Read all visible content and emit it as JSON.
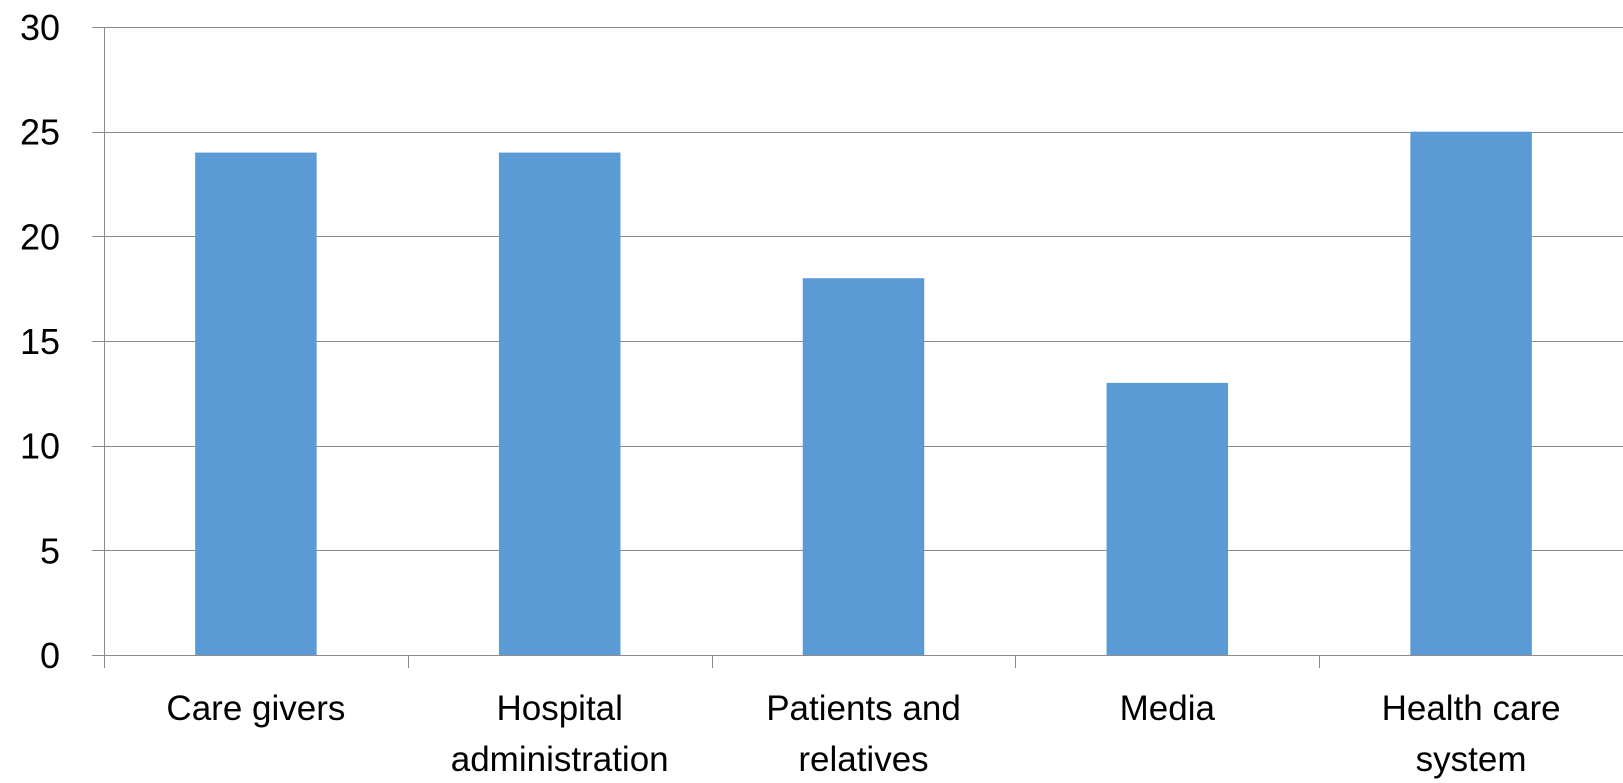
{
  "chart_data": {
    "type": "bar",
    "title": "",
    "xlabel": "",
    "ylabel": "",
    "categories": [
      [
        "Care givers"
      ],
      [
        "Hospital",
        "administration"
      ],
      [
        "Patients and",
        "relatives"
      ],
      [
        "Media"
      ],
      [
        "Health care",
        "system"
      ]
    ],
    "values": [
      24,
      24,
      18,
      13,
      25
    ],
    "ylim": [
      0,
      30
    ],
    "yticks": [
      0,
      5,
      10,
      15,
      20,
      25,
      30
    ],
    "grid": true,
    "legend": "none",
    "colors": {
      "bar": "#5b9bd5",
      "grid": "#8c8c8c",
      "axis": "#8c8c8c"
    }
  }
}
